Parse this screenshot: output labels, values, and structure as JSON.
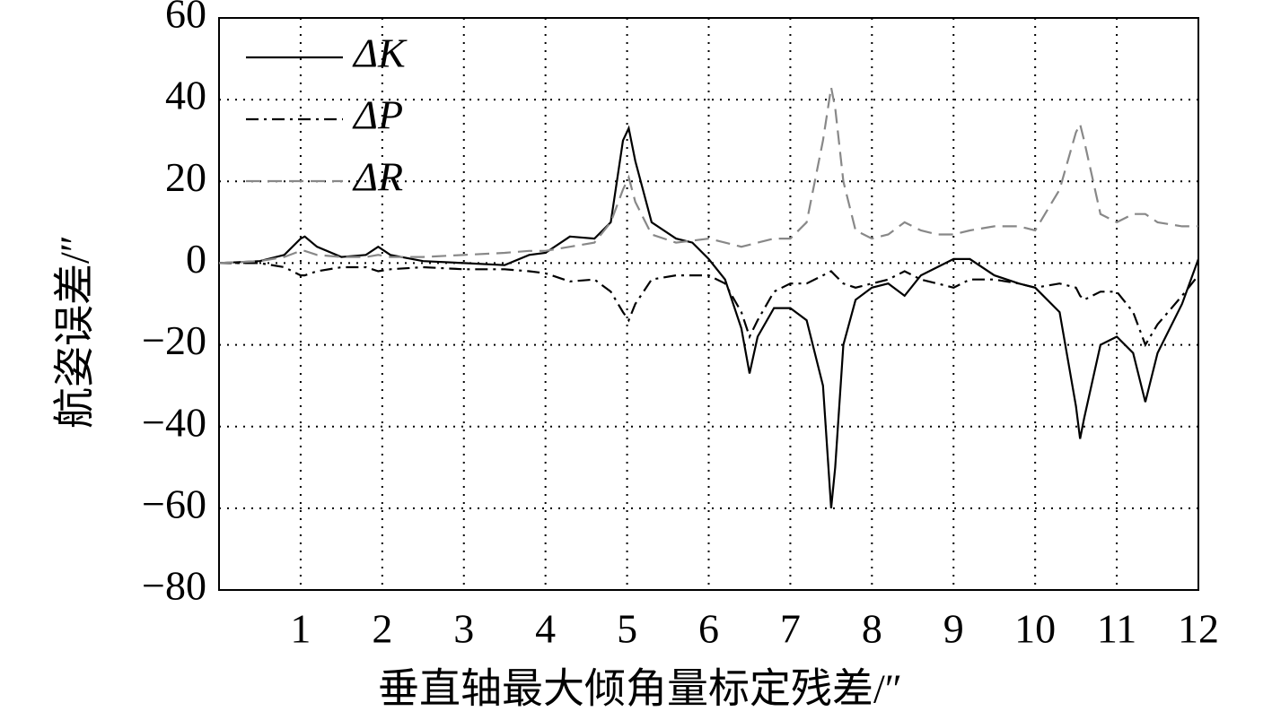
{
  "chart_data": {
    "type": "line",
    "x_label": "垂直轴最大倾角量标定残差/″",
    "y_label": "航姿误差/″",
    "xlim": [
      0,
      12
    ],
    "ylim": [
      -80,
      60
    ],
    "xticks": [
      1,
      2,
      3,
      4,
      5,
      6,
      7,
      8,
      9,
      10,
      11,
      12
    ],
    "yticks": [
      {
        "value": -80,
        "label": "−80"
      },
      {
        "value": -60,
        "label": "−60"
      },
      {
        "value": -40,
        "label": "−40"
      },
      {
        "value": -20,
        "label": "−20"
      },
      0,
      20,
      40,
      60
    ],
    "grid": true,
    "legend": "upper left",
    "x": [
      0,
      0.5,
      0.8,
      1.0,
      1.05,
      1.2,
      1.5,
      1.8,
      1.95,
      2.1,
      2.5,
      3.0,
      3.5,
      3.8,
      4.0,
      4.3,
      4.6,
      4.8,
      4.95,
      5.02,
      5.1,
      5.3,
      5.6,
      5.8,
      6.0,
      6.2,
      6.4,
      6.5,
      6.6,
      6.8,
      7.0,
      7.2,
      7.4,
      7.5,
      7.55,
      7.65,
      7.8,
      8.0,
      8.2,
      8.4,
      8.6,
      8.8,
      9.0,
      9.2,
      9.5,
      9.8,
      10.0,
      10.3,
      10.5,
      10.55,
      10.6,
      10.8,
      11.0,
      11.2,
      11.35,
      11.5,
      11.8,
      12.0
    ],
    "series": [
      {
        "name": "ΔK",
        "color": "#000000",
        "linestyle": "solid",
        "values": [
          0,
          0.5,
          2,
          6,
          6.5,
          4,
          1.5,
          2,
          4,
          2,
          0.5,
          0,
          -0.5,
          2,
          2.5,
          6.5,
          6,
          10,
          30,
          33,
          25,
          10,
          6,
          5,
          1,
          -4,
          -16,
          -27,
          -18,
          -11,
          -11,
          -14,
          -30,
          -60,
          -50,
          -20,
          -9,
          -6,
          -5,
          -8,
          -3,
          -1,
          1,
          1,
          -3,
          -5,
          -6,
          -12,
          -35,
          -43,
          -38,
          -20,
          -18,
          -22,
          -34,
          -22,
          -10,
          1
        ]
      },
      {
        "name": "ΔP",
        "color": "#000000",
        "linestyle": "dashdot",
        "values": [
          0,
          0,
          -1,
          -3,
          -3,
          -2,
          -1,
          -1,
          -2,
          -1.5,
          -1,
          -1.5,
          -1.5,
          -2,
          -2.5,
          -4.5,
          -4,
          -7,
          -12,
          -14,
          -10,
          -4,
          -3,
          -3,
          -3,
          -5,
          -12,
          -18,
          -14,
          -7,
          -5,
          -5,
          -3,
          -2,
          -3,
          -5,
          -6,
          -5,
          -4,
          -2,
          -4,
          -5,
          -6,
          -4,
          -4,
          -5,
          -6,
          -5,
          -6,
          -8,
          -9,
          -7,
          -7,
          -12,
          -20,
          -15,
          -8,
          -3
        ]
      },
      {
        "name": "ΔR",
        "color": "#888888",
        "linestyle": "dashed",
        "values": [
          0,
          0.5,
          1.5,
          3,
          3,
          2,
          1.5,
          1.5,
          2,
          1.5,
          1.5,
          2,
          2.5,
          3,
          3,
          4,
          5,
          10,
          18,
          21,
          15,
          7,
          5,
          5.5,
          6,
          5,
          4,
          4.5,
          5,
          6,
          6,
          10,
          30,
          43,
          38,
          20,
          8,
          6,
          7,
          10,
          8,
          7,
          7,
          8,
          9,
          9,
          8,
          18,
          32,
          34,
          30,
          12,
          10,
          12,
          12,
          10,
          9,
          9
        ]
      }
    ]
  }
}
